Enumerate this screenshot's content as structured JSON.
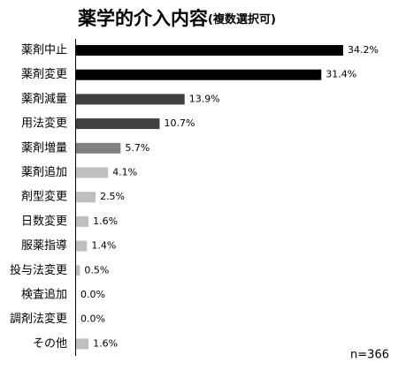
{
  "chart_data": {
    "type": "hbar",
    "title": "薬学的介入内容",
    "subtitle": "(複数選択可)",
    "note": "n=366",
    "categories": [
      "薬剤中止",
      "薬剤変更",
      "薬剤減量",
      "用法変更",
      "薬剤増量",
      "薬剤追加",
      "剤型変更",
      "日数変更",
      "服薬指導",
      "投与法変更",
      "検査追加",
      "調剤法変更",
      "その他"
    ],
    "values": [
      34.2,
      31.4,
      13.9,
      10.7,
      5.7,
      4.1,
      2.5,
      1.6,
      1.4,
      0.5,
      0.0,
      0.0,
      1.6
    ],
    "value_labels": [
      "34.2%",
      "31.4%",
      "13.9%",
      "10.7%",
      "5.7%",
      "4.1%",
      "2.5%",
      "1.6%",
      "1.4%",
      "0.5%",
      "0.0%",
      "0.0%",
      "1.6%"
    ],
    "colors": [
      "#000000",
      "#000000",
      "#404040",
      "#404040",
      "#808080",
      "#bfbfbf",
      "#bfbfbf",
      "#bfbfbf",
      "#bfbfbf",
      "#bfbfbf",
      "#bfbfbf",
      "#bfbfbf",
      "#bfbfbf"
    ]
  }
}
